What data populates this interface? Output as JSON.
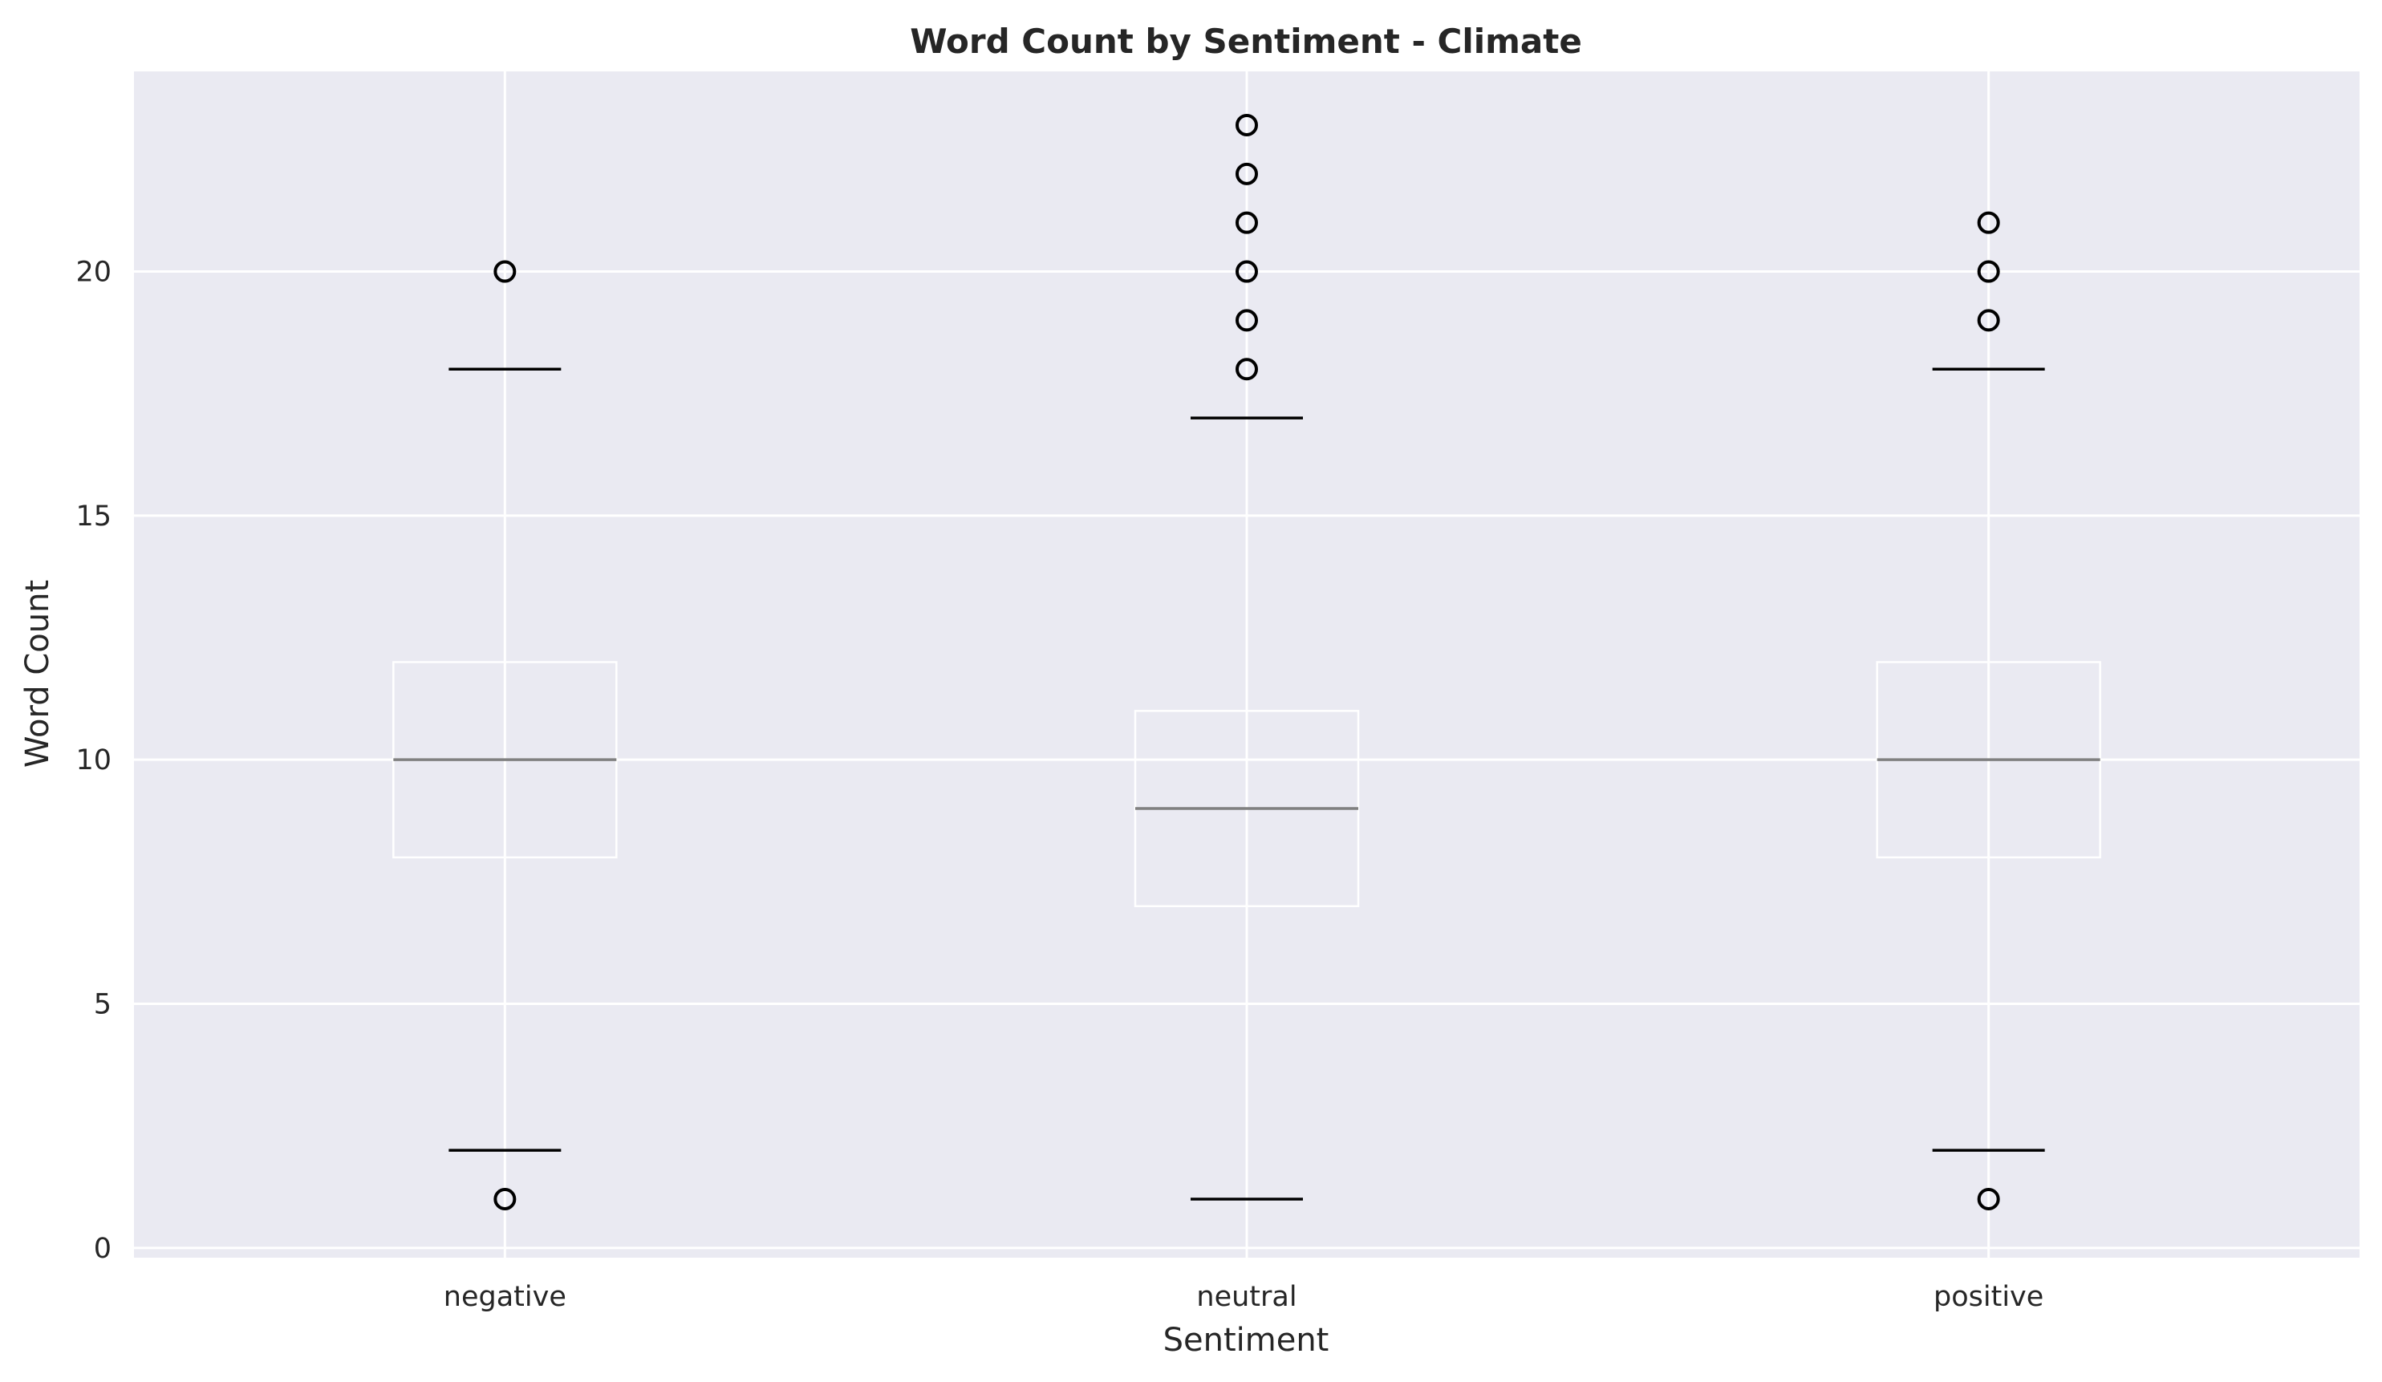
{
  "chart_data": {
    "type": "box",
    "title": "Word Count by Sentiment - Climate",
    "xlabel": "Sentiment",
    "ylabel": "Word Count",
    "categories": [
      "negative",
      "neutral",
      "positive"
    ],
    "ylim": [
      -0.2,
      24.1
    ],
    "yticks": [
      0,
      5,
      10,
      15,
      20
    ],
    "grid": true,
    "legend": "none",
    "boxes": [
      {
        "category": "negative",
        "whisker_low": 2,
        "q1": 8,
        "median": 10,
        "q3": 12,
        "whisker_high": 18,
        "outliers": [
          20,
          1
        ]
      },
      {
        "category": "neutral",
        "whisker_low": 1,
        "q1": 7,
        "median": 9,
        "q3": 11,
        "whisker_high": 17,
        "outliers": [
          23,
          22,
          21,
          20,
          19,
          18
        ]
      },
      {
        "category": "positive",
        "whisker_low": 2,
        "q1": 8,
        "median": 10,
        "q3": 12,
        "whisker_high": 18,
        "outliers": [
          21,
          20,
          19,
          1
        ]
      }
    ],
    "colors": {
      "plot_background": "#EAEAF2",
      "grid": "#FFFFFF",
      "box": "#FFFFFF",
      "median": "#808080",
      "caps": "#000000",
      "outlier_edge": "#000000"
    }
  }
}
